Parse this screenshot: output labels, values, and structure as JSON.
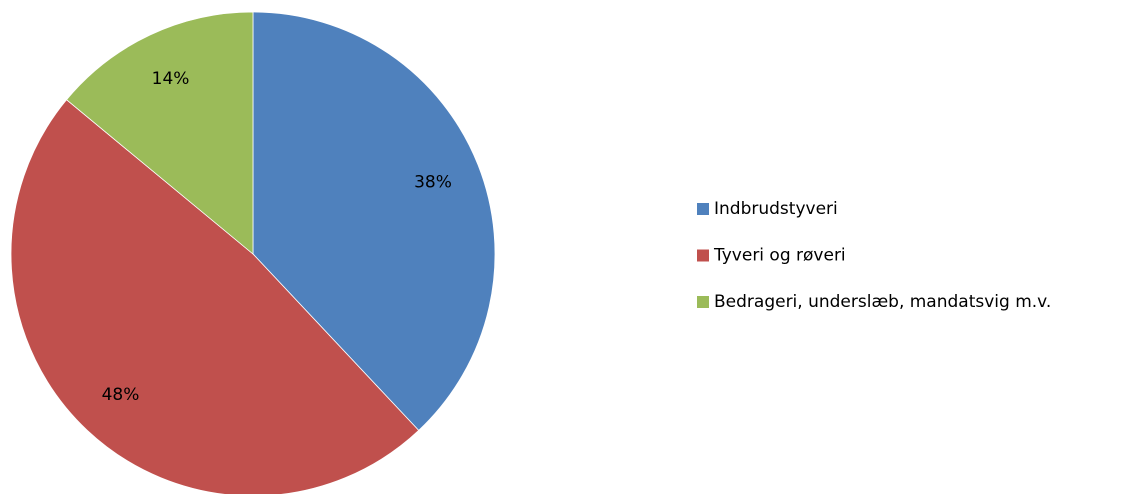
{
  "chart_data": {
    "type": "pie",
    "categories": [
      "Indbrudstyveri",
      "Tyveri og røveri",
      "Bedrageri, underslæb, mandatsvig m.v."
    ],
    "values": [
      38,
      48,
      14
    ],
    "value_labels": [
      "38%",
      "48%",
      "14%"
    ],
    "colors": [
      "#4f81bd",
      "#c0504d",
      "#9bbb59"
    ],
    "legend": "right"
  }
}
